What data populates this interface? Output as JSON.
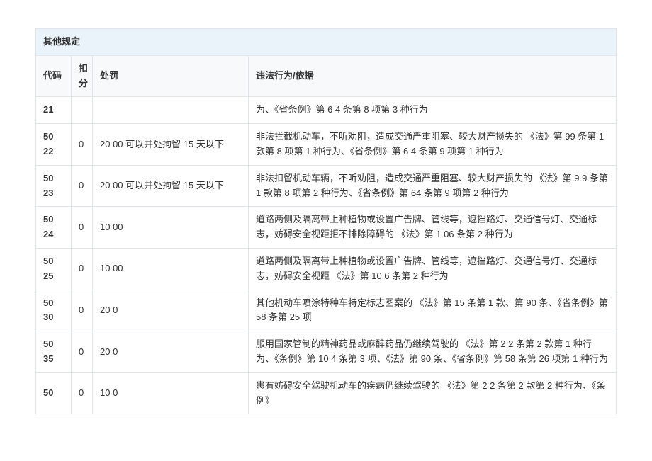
{
  "section_title": "其他规定",
  "columns": {
    "code": "代码",
    "score": "扣分",
    "penalty": "处罚",
    "basis": "违法行为/依据"
  },
  "rows": [
    {
      "code": "21",
      "score": "",
      "penalty": "",
      "basis": "为、《省条例》第 6  4 条第 8 项第 3 种行为"
    },
    {
      "code": "  50\n22",
      "score": "0",
      "penalty": "  20  00 可以并处拘留 15 天以下",
      "basis": "非法拦截机动车，不听劝阻，造成交通严重阻塞、较大财产损失的 《法》第 99 条第 1 款第 8 项第 1 种行为、《省条例》第 6  4 条第 9 项第 1 种行为"
    },
    {
      "code": "  50\n23",
      "score": "0",
      "penalty": "  20  00 可以并处拘留 15 天以下",
      "basis": "非法扣留机动车辆，不听劝阻，造成交通严重阻塞、较大财产损失的 《法》第 9  9 条第 1 款第 8 项第 2 种行为、《省条例》第 64 条第 9 项第 2 种行为"
    },
    {
      "code": "  50\n24",
      "score": "0",
      "penalty": "  10  00",
      "basis": "道路两侧及隔离带上种植物或设置广告牌、管线等，遮挡路灯、交通信号灯、交通标志，妨碍安全视距拒不排除障碍的 《法》第 1  06 条第 2 种行为"
    },
    {
      "code": "  50\n25",
      "score": "0",
      "penalty": "  10  00",
      "basis": "道路两侧及隔离带上种植物或设置广告牌、管线等，遮挡路灯、交通信号灯、交通标志，妨碍安全视距 《法》第 10  6 条第 2 种行为"
    },
    {
      "code": "  50\n30",
      "score": "0",
      "penalty": "  20  0",
      "basis": "其他机动车喷涂特种车特定标志图案的 《法》第 15 条第 1 款、第 90 条、《省条例》第 58 条第 25 项"
    },
    {
      "code": "  50\n35",
      "score": "0",
      "penalty": "  20  0",
      "basis": "服用国家管制的精神药品或麻醉药品仍继续驾驶的 《法》第 2  2 条第 2 款第 1 种行为、《条例》第 10  4 条第 3 项、《法》第 90 条、《省条例》第 58 条第 26 项第 1 种行为"
    },
    {
      "code": "  50",
      "score": "0",
      "penalty": "  10  0",
      "basis": "患有妨碍安全驾驶机动车的疾病仍继续驾驶的 《法》第 2  2 条第 2 款第 2 种行为、《条例》"
    }
  ]
}
